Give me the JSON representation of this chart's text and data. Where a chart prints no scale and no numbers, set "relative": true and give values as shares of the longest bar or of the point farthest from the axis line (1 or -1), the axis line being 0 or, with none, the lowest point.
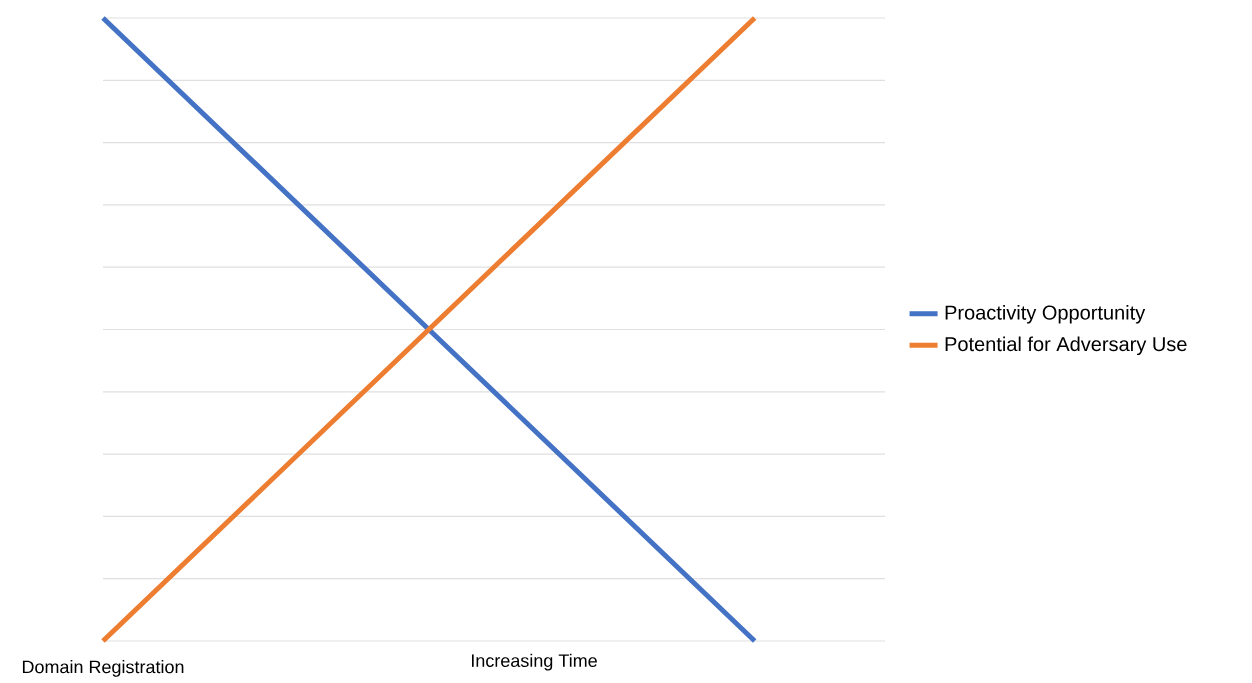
{
  "chart_data": {
    "type": "line",
    "relative": true,
    "xlabel": "Increasing Time",
    "categories": [
      null,
      null,
      null
    ],
    "annotations": [
      "Domain Registration"
    ],
    "series": [
      {
        "name": "Proactivity Opportunity",
        "color": "#4472c4",
        "values": [
          1,
          0.5,
          0
        ]
      },
      {
        "name": "Potential for Adversary Use",
        "color": "#ed7d31",
        "values": [
          0,
          0.5,
          1
        ]
      }
    ],
    "grid": "y",
    "legend": "right",
    "line_style": "solid",
    "marker": "none"
  }
}
